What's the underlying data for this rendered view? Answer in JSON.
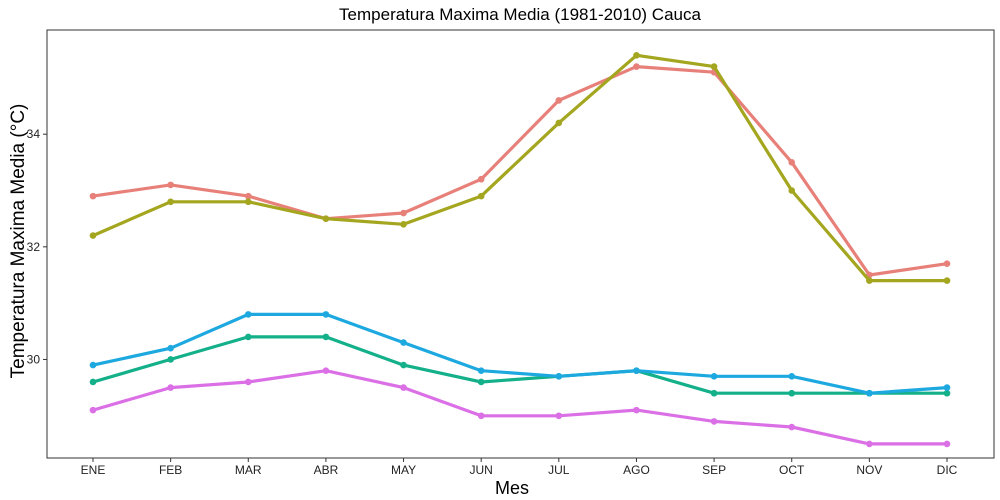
{
  "chart_data": {
    "type": "line",
    "title": "Temperatura Maxima Media (1981-2010)  Cauca",
    "xlabel": "Mes",
    "ylabel": "Temperatura Maxima Media  (°C)",
    "categories": [
      "ENE",
      "FEB",
      "MAR",
      "ABR",
      "MAY",
      "JUN",
      "JUL",
      "AGO",
      "SEP",
      "OCT",
      "NOV",
      "DIC"
    ],
    "ylim": [
      28.25,
      35.85
    ],
    "yticks": [
      30,
      32,
      34
    ],
    "ytick_labels": [
      "30",
      "32",
      "34"
    ],
    "grid": false,
    "legend": "none",
    "series": [
      {
        "color": "#E8807A",
        "values": [
          32.9,
          33.1,
          32.9,
          32.5,
          32.6,
          33.2,
          34.6,
          35.2,
          35.1,
          33.5,
          31.5,
          31.7
        ]
      },
      {
        "color": "#A3A61E",
        "values": [
          32.2,
          32.8,
          32.8,
          32.5,
          32.4,
          32.9,
          34.2,
          35.4,
          35.2,
          33.0,
          31.4,
          31.4
        ]
      },
      {
        "color": "#13B08A",
        "values": [
          29.6,
          30.0,
          30.4,
          30.4,
          29.9,
          29.6,
          29.7,
          29.8,
          29.4,
          29.4,
          29.4,
          29.4
        ]
      },
      {
        "color": "#1DA9E0",
        "values": [
          29.9,
          30.2,
          30.8,
          30.8,
          30.3,
          29.8,
          29.7,
          29.8,
          29.7,
          29.7,
          29.4,
          29.5
        ]
      },
      {
        "color": "#DB70E6",
        "values": [
          29.1,
          29.5,
          29.6,
          29.8,
          29.5,
          29.0,
          29.0,
          29.1,
          28.9,
          28.8,
          28.5,
          28.5
        ]
      }
    ]
  }
}
